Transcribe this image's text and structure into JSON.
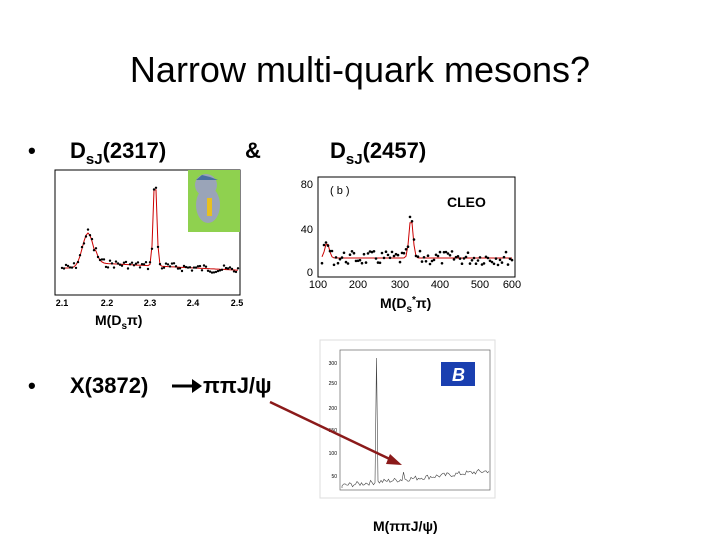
{
  "header": {
    "title": "Narrow multi-quark mesons?"
  },
  "bullets": [
    {
      "items": [
        {
          "main": "D",
          "sub": "sJ",
          "rest": "(2317)"
        },
        {
          "main": "&"
        },
        {
          "main": "D",
          "sub": "sJ",
          "rest": "(2457)"
        }
      ]
    },
    {
      "items": [
        {
          "main": "X(3872)"
        },
        {
          "main": "ππJ/ψ"
        }
      ]
    }
  ],
  "plots": [
    {
      "xticks": [
        "2.1",
        "2.2",
        "2.3",
        "2.4",
        "2.5"
      ],
      "xlabel": {
        "main": "M(D",
        "sub": "s",
        "rest": "π)"
      }
    },
    {
      "yticks": [
        "80",
        "40",
        "0"
      ],
      "xticks": [
        "100",
        "200",
        "300",
        "400",
        "500",
        "600"
      ],
      "panel": "( b )",
      "experiment": "CLEO",
      "xlabel": {
        "main": "M(D",
        "sub": "s",
        "sup": "*",
        "rest": "π)"
      }
    },
    {
      "yticks": [
        "300",
        "250",
        "200",
        "150",
        "100",
        "50"
      ],
      "xlabel": "M(ππJ/ψ)"
    }
  ]
}
